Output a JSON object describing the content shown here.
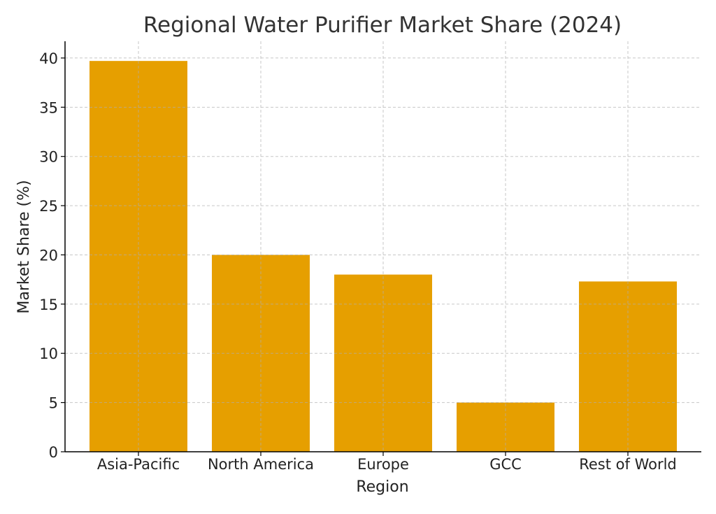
{
  "colors": {
    "bar": "#E69F00",
    "grid": "#b0b0b0",
    "axis": "#000000",
    "title": "#333333",
    "text": "#222222"
  },
  "chart_data": {
    "type": "bar",
    "title": "Regional Water Purifier Market Share (2024)",
    "xlabel": "Region",
    "ylabel": "Market Share (%)",
    "categories": [
      "Asia-Pacific",
      "North America",
      "Europe",
      "GCC",
      "Rest of World"
    ],
    "values": [
      39.7,
      20.0,
      18.0,
      5.0,
      17.3
    ],
    "ylim": [
      0,
      41.7
    ],
    "yticks": [
      "0",
      "5",
      "10",
      "15",
      "20",
      "25",
      "30",
      "35",
      "40"
    ],
    "grid": true,
    "legend": "none"
  }
}
